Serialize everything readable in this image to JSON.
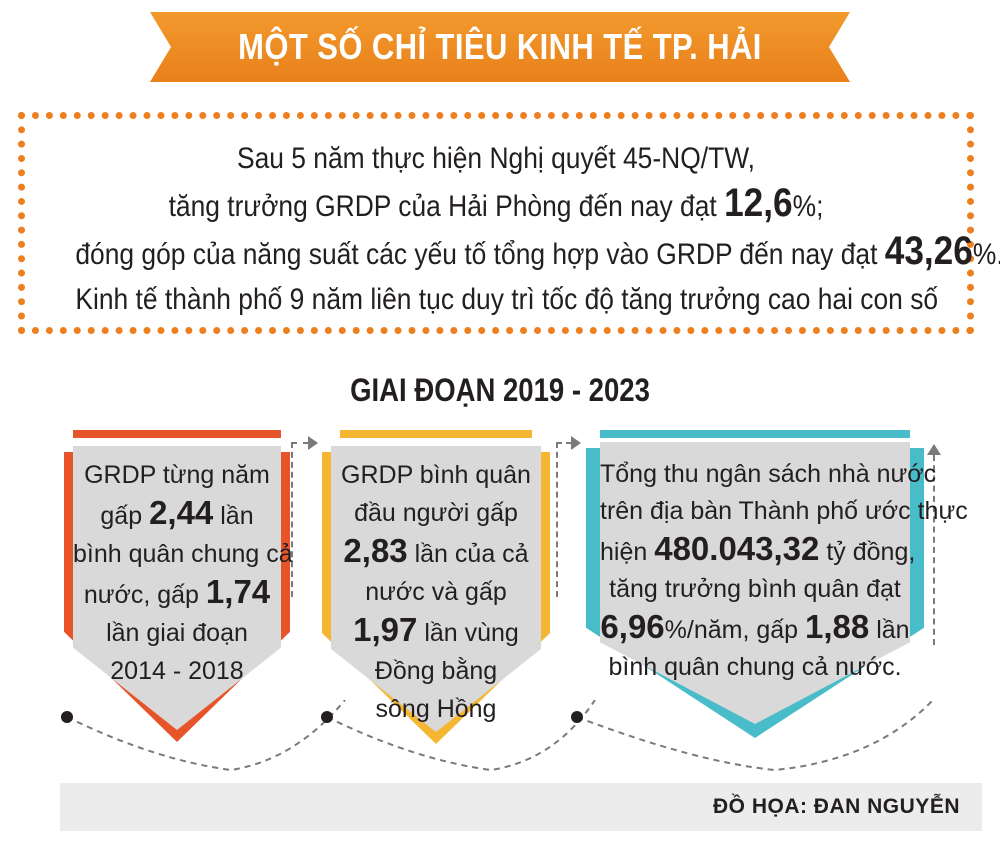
{
  "title": "MỘT SỐ CHỈ TIÊU KINH TẾ TP. HẢI PHÒNG",
  "intro": {
    "line1": "Sau 5 năm thực hiện Nghị quyết 45-NQ/TW,",
    "line2_pre": "tăng trưởng GRDP của Hải Phòng đến nay đạt ",
    "line2_num": "12,6",
    "line2_post": "%;",
    "line3_pre": "đóng góp của năng suất các yếu tố tổng hợp vào GRDP đến nay đạt ",
    "line3_num": "43,26",
    "line3_post": "%.",
    "line4": "Kinh tế thành phố 9 năm liên tục duy trì tốc độ tăng trưởng cao hai con số"
  },
  "period": "GIAI ĐOẠN 2019 - 2023",
  "cards": [
    {
      "color": "#e8542a",
      "l1": "GRDP từng năm",
      "l2_pre": "gấp ",
      "l2_num": "2,44",
      "l2_post": " lần",
      "l3": "bình quân chung cả",
      "l4_pre": "nước, gấp ",
      "l4_num": "1,74",
      "l5": "lần giai đoạn",
      "l6": "2014 - 2018"
    },
    {
      "color": "#f5b731",
      "l1": "GRDP bình quân",
      "l2": "đầu người gấp",
      "l3_num": "2,83",
      "l3_post": " lần của cả",
      "l4": "nước và gấp",
      "l5_num": "1,97",
      "l5_post": " lần vùng",
      "l6": "Đồng bằng",
      "l7": "sông Hồng"
    },
    {
      "color": "#49bcc9",
      "l1": "Tổng thu ngân sách nhà nước",
      "l2": "trên địa bàn Thành phố ước thực",
      "l3_pre": "hiện ",
      "l3_num": "480.043,32",
      "l3_post": " tỷ đồng,",
      "l4": "tăng trưởng bình quân đạt",
      "l5_num1": "6,96",
      "l5_mid": "%/năm, gấp ",
      "l5_num2": "1,88",
      "l5_post": " lần",
      "l6": "bình quân chung cả nước."
    }
  ],
  "footer": "ĐỒ HỌA: ĐAN NGUYỄN"
}
